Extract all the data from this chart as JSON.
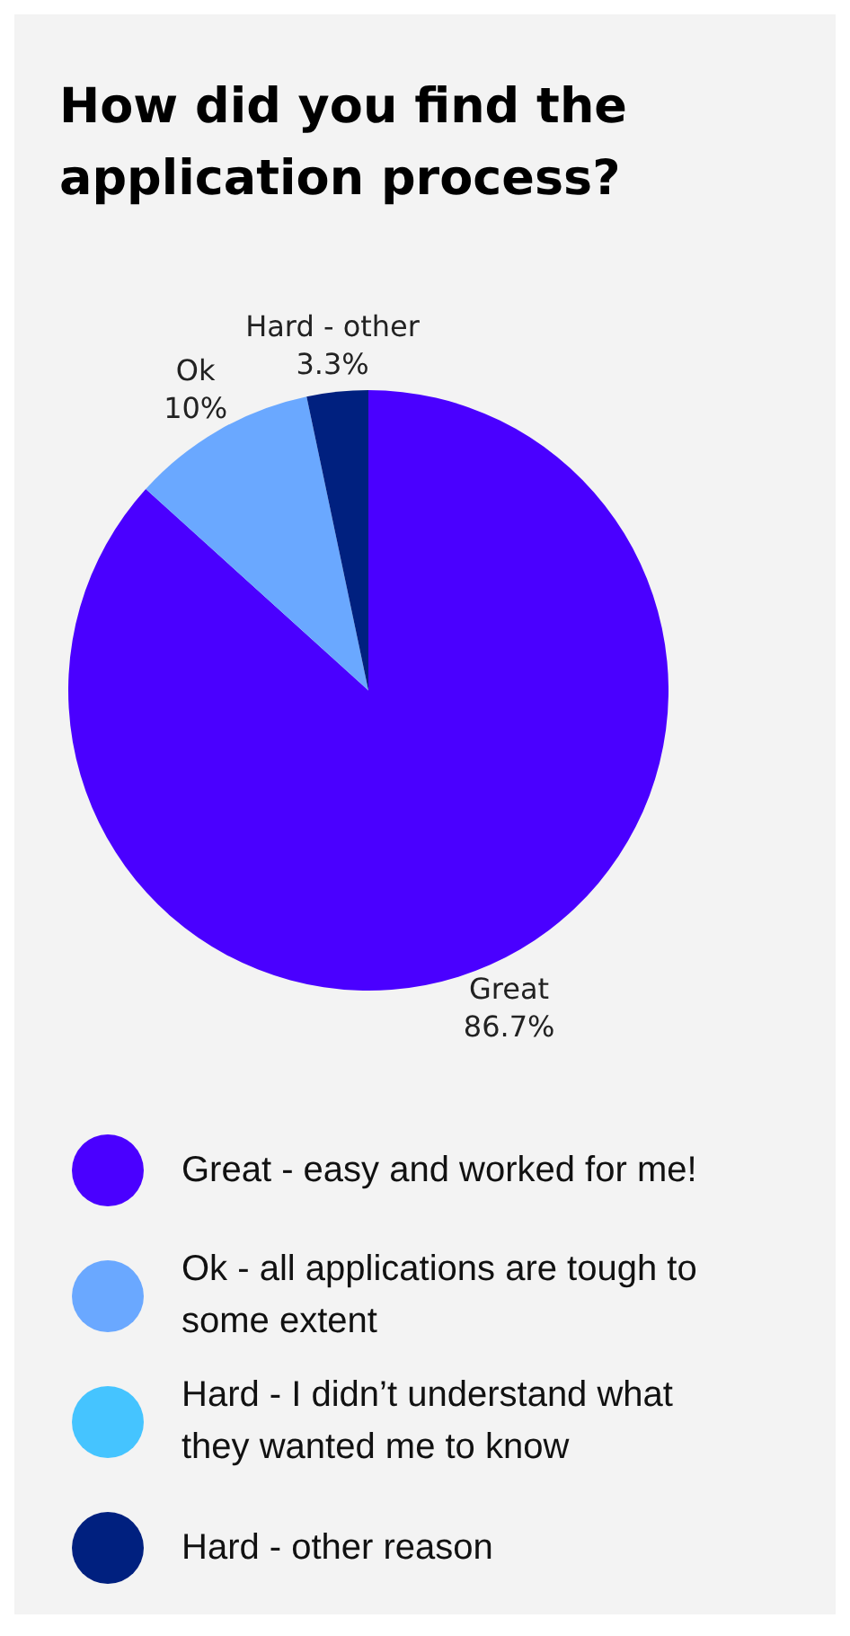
{
  "chart_data": {
    "type": "pie",
    "title": "How did you find the application process?",
    "categories": [
      "Great - easy and worked for me!",
      "Ok - all applications are tough to some extent",
      "Hard - I didn’t understand what they wanted me to know",
      "Hard - other reason"
    ],
    "values": [
      86.7,
      10,
      0,
      3.3
    ],
    "colors": [
      "#4a00ff",
      "#6aa8ff",
      "#45c4ff",
      "#00207f"
    ],
    "value_labels": [
      "Great\n86.7%",
      "Ok\n10%",
      null,
      "Hard - other\n3.3%"
    ],
    "legend": "bottom"
  }
}
